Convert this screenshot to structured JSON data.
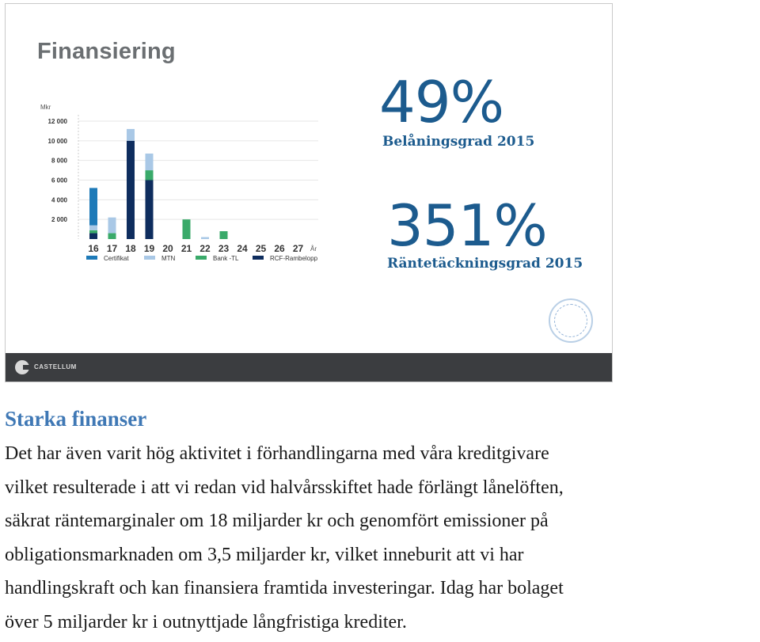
{
  "slide": {
    "title": "Finansiering",
    "stat1": {
      "value": "49%",
      "label": "Belåningsgrad 2015"
    },
    "stat2": {
      "value": "351%",
      "label": "Räntetäckningsgrad 2015"
    },
    "footer_brand": "CASTELLUM",
    "colors": {
      "certifikat": "#1e7ab8",
      "mtn": "#a9c8e6",
      "bank_tl": "#3aaa6a",
      "rcf": "#0e2d5e",
      "stat": "#1c5b8e",
      "footer": "#3b3d40"
    }
  },
  "chart_data": {
    "type": "bar",
    "stacked": true,
    "ylabel": "Mkr",
    "xlabel_suffix": "År",
    "yticks": [
      2000,
      4000,
      6000,
      8000,
      10000,
      12000
    ],
    "ylim": [
      0,
      12000
    ],
    "categories": [
      "16",
      "17",
      "18",
      "19",
      "20",
      "21",
      "22",
      "23",
      "24",
      "25",
      "26",
      "27"
    ],
    "series": [
      {
        "name": "RCF-Rambelopp",
        "color": "#0e2d5e",
        "values": [
          600,
          0,
          10000,
          6000,
          0,
          0,
          0,
          0,
          0,
          0,
          0,
          0
        ]
      },
      {
        "name": "Bank -TL",
        "color": "#3aaa6a",
        "values": [
          300,
          600,
          0,
          1000,
          0,
          2000,
          0,
          800,
          0,
          0,
          0,
          0
        ]
      },
      {
        "name": "MTN",
        "color": "#a9c8e6",
        "values": [
          500,
          1600,
          1200,
          1700,
          0,
          0,
          200,
          0,
          0,
          0,
          0,
          0
        ]
      },
      {
        "name": "Certifikat",
        "color": "#1e7ab8",
        "values": [
          3800,
          0,
          0,
          0,
          0,
          0,
          0,
          0,
          0,
          0,
          0,
          0
        ]
      }
    ],
    "legend": [
      "Certifikat",
      "MTN",
      "Bank -TL",
      "RCF-Rambelopp"
    ],
    "legend_position": "bottom"
  },
  "article": {
    "heading": "Starka finanser",
    "lines": [
      "Det har även varit hög aktivitet i förhandlingarna med våra kreditgivare",
      "vilket resulterade i att vi redan vid halvårsskiftet hade förlängt lånelöften,",
      "säkrat räntemarginaler om 18 miljarder kr och genomfört emissioner på",
      "obligationsmarknaden om 3,5 miljarder kr, vilket inneburit att vi har",
      "handlingskraft och kan finansiera framtida investeringar. Idag har bolaget",
      "över 5 miljarder kr i outnyttjade långfristiga krediter."
    ]
  }
}
